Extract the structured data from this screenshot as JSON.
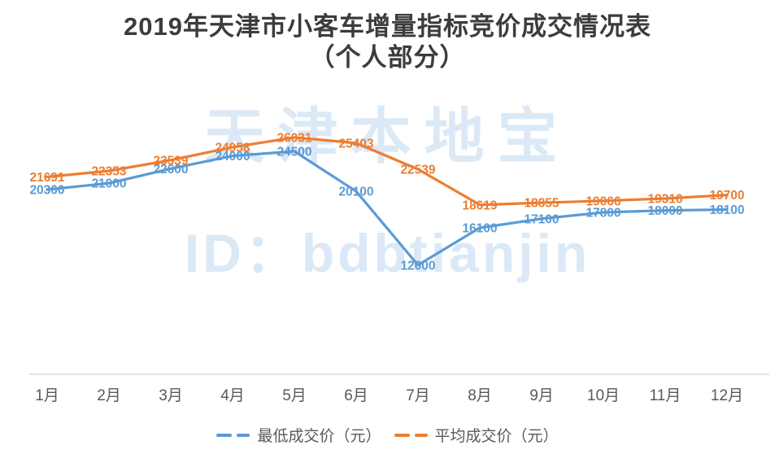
{
  "title": {
    "line1": "2019年天津市小客车增量指标竞价成交情况表",
    "line2": "（个人部分）"
  },
  "watermark": {
    "line1": "天津本地宝",
    "line2": "ID：bdbtianjin"
  },
  "chart_data": {
    "type": "line",
    "title": "2019年天津市小客车增量指标竞价成交情况表（个人部分）",
    "categories": [
      "1月",
      "2月",
      "3月",
      "4月",
      "5月",
      "6月",
      "7月",
      "8月",
      "9月",
      "10月",
      "11月",
      "12月"
    ],
    "series": [
      {
        "name": "最低成交价（元）",
        "color": "#5B9BD5",
        "values": [
          20300,
          21000,
          22600,
          24000,
          24500,
          20100,
          12000,
          16100,
          17100,
          17800,
          18000,
          18100
        ]
      },
      {
        "name": "平均成交价（元）",
        "color": "#ED7D31",
        "values": [
          21691,
          22353,
          23539,
          24958,
          26031,
          25403,
          22539,
          18619,
          18855,
          19066,
          19316,
          19700
        ]
      }
    ],
    "xlabel": "",
    "ylabel": "",
    "ylim": [
      0,
      31300
    ],
    "grid": false,
    "y_axis_labels_visible": false,
    "legend_position": "bottom",
    "data_labels": "center",
    "axis_line_color": "#d9d9d9",
    "category_label_color": "#595959"
  }
}
